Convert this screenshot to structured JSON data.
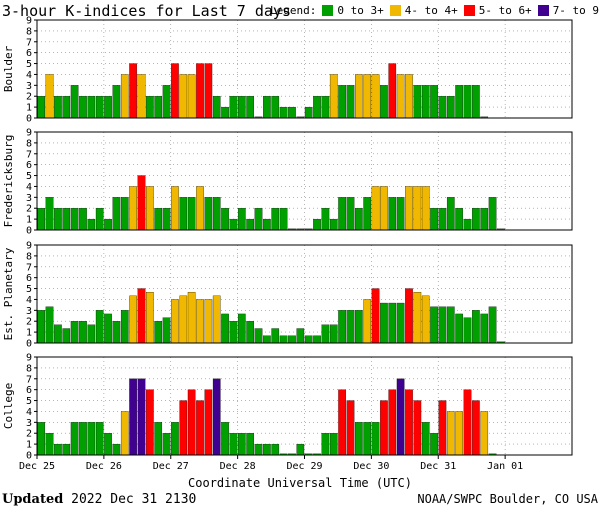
{
  "title": "3-hour K-indices for Last 7 days",
  "legend": {
    "label": "Legend:",
    "items": [
      {
        "label": "0 to 3+",
        "color": "#00a000"
      },
      {
        "label": "4- to 4+",
        "color": "#f0b800"
      },
      {
        "label": "5- to 6+",
        "color": "#ff0000"
      },
      {
        "label": "7- to 9",
        "color": "#400090"
      }
    ]
  },
  "footer": {
    "updated_label": "Updated",
    "updated_value": "2022 Dec 31 2130",
    "source": "NOAA/SWPC Boulder, CO USA"
  },
  "chart_data": {
    "type": "bar",
    "title": "3-hour K-indices for Last 7 days",
    "xlabel": "Coordinate Universal Time (UTC)",
    "x_tick_labels": [
      "Dec 25",
      "Dec 26",
      "Dec 27",
      "Dec 28",
      "Dec 29",
      "Dec 30",
      "Dec 31",
      "Jan 01"
    ],
    "ylim": [
      0,
      9
    ],
    "y_ticks": [
      0,
      1,
      2,
      3,
      4,
      5,
      6,
      7,
      8,
      9
    ],
    "intervals_per_day": 8,
    "panels": [
      {
        "name": "Boulder",
        "values": [
          2,
          4,
          2,
          2,
          3,
          2,
          2,
          2,
          2,
          3,
          4,
          5,
          4,
          2,
          2,
          3,
          5,
          4,
          4,
          5,
          5,
          2,
          1,
          2,
          2,
          2,
          0,
          2,
          2,
          1,
          1,
          0,
          1,
          2,
          2,
          4,
          3,
          3,
          4,
          4,
          4,
          3,
          5,
          4,
          4,
          3,
          3,
          3,
          2,
          2,
          3,
          3,
          3,
          0
        ]
      },
      {
        "name": "Fredericksburg",
        "values": [
          2,
          3,
          2,
          2,
          2,
          2,
          1,
          2,
          1,
          3,
          3,
          4,
          5,
          4,
          2,
          2,
          4,
          3,
          3,
          4,
          3,
          3,
          2,
          1,
          2,
          1,
          2,
          1,
          2,
          2,
          0,
          0,
          0,
          1,
          2,
          1,
          3,
          3,
          2,
          3,
          4,
          4,
          3,
          3,
          4,
          4,
          4,
          2,
          2,
          3,
          2,
          1,
          2,
          2,
          3,
          0
        ]
      },
      {
        "name": "Est. Planetary",
        "values": [
          3,
          3.33,
          1.67,
          1.33,
          2,
          2,
          1.67,
          3,
          2.67,
          2,
          3,
          4.33,
          5,
          4.67,
          2,
          2.33,
          4,
          4.33,
          4.67,
          4,
          4,
          4.33,
          2.67,
          2,
          2.67,
          2,
          1.33,
          0.67,
          1.33,
          0.67,
          0.67,
          1.33,
          0.67,
          0.67,
          1.67,
          1.67,
          3,
          3,
          3,
          4,
          5,
          3.67,
          3.67,
          3.67,
          5,
          4.67,
          4.33,
          3.33,
          3.33,
          3.33,
          2.67,
          2.33,
          3,
          2.67,
          3.33,
          0
        ]
      },
      {
        "name": "College",
        "values": [
          3,
          2,
          1,
          1,
          3,
          3,
          3,
          3,
          2,
          1,
          4,
          7,
          7,
          6,
          3,
          2,
          3,
          5,
          6,
          5,
          6,
          7,
          3,
          2,
          2,
          2,
          1,
          1,
          1,
          0,
          0,
          1,
          0,
          0,
          2,
          2,
          6,
          5,
          3,
          3,
          3,
          5,
          6,
          7,
          6,
          5,
          3,
          2,
          5,
          4,
          4,
          6,
          5,
          4,
          0
        ]
      }
    ]
  }
}
